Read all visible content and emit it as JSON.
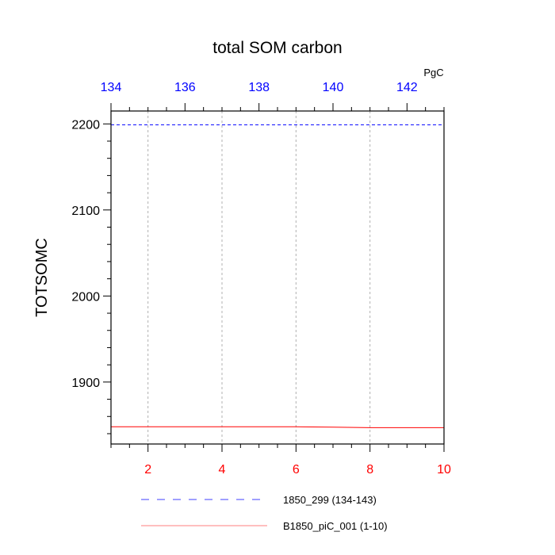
{
  "chart_data": {
    "type": "line",
    "title": "total SOM carbon",
    "ylabel": "TOTSOMC",
    "units_label": "PgC",
    "ylim": [
      1828,
      2215
    ],
    "yticks": [
      1900,
      2000,
      2100,
      2200
    ],
    "y_minor_step": 20,
    "grid": "vertical dotted at bottom-axis major ticks",
    "legend_position": "bottom",
    "x_bottom": {
      "range": [
        1,
        10
      ],
      "ticks": [
        2,
        4,
        6,
        8,
        10
      ],
      "minor_step": 0.5,
      "color": "#ff0000"
    },
    "x_top": {
      "range": [
        134,
        143
      ],
      "ticks": [
        134,
        136,
        138,
        140,
        142
      ],
      "minor_step": 0.5,
      "color": "#0000ff"
    },
    "series": [
      {
        "name": "1850_299 (134-143)",
        "axis": "top",
        "color": "#0000ff",
        "dash": "dashed",
        "x": [
          134,
          135,
          136,
          137,
          138,
          139,
          140,
          141,
          142,
          143
        ],
        "y": [
          2199,
          2199,
          2199,
          2199,
          2199,
          2199,
          2199,
          2199,
          2199,
          2199
        ]
      },
      {
        "name": "B1850_piC_001 (1-10)",
        "axis": "bottom",
        "color": "#ff0000",
        "dash": "solid",
        "x": [
          1,
          2,
          3,
          4,
          5,
          6,
          7,
          8,
          9,
          10
        ],
        "y": [
          1848,
          1848,
          1848,
          1848,
          1848,
          1848,
          1847.5,
          1847,
          1847,
          1847
        ]
      }
    ]
  }
}
